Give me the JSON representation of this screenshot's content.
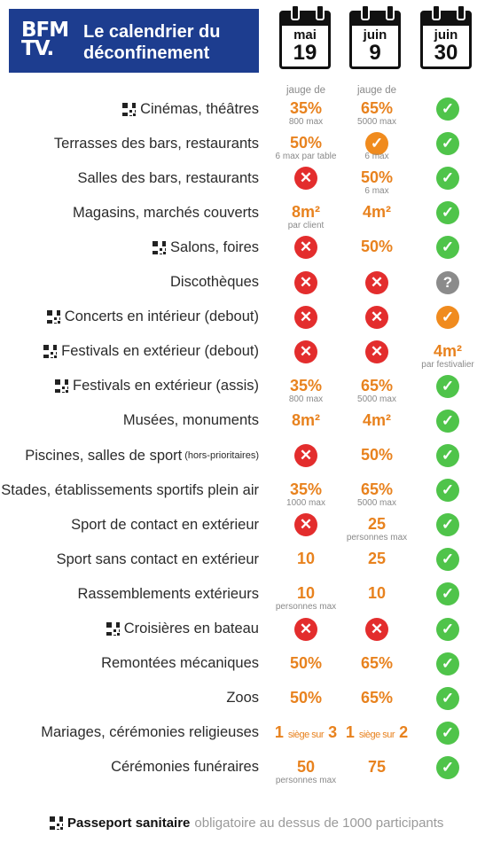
{
  "header": {
    "logo_line1": "BFM",
    "logo_line2": "TV.",
    "title_line1": "Le calendrier du",
    "title_line2": "déconfinement"
  },
  "calendars": [
    {
      "month": "mai",
      "day": "19"
    },
    {
      "month": "juin",
      "day": "9"
    },
    {
      "month": "juin",
      "day": "30"
    }
  ],
  "colors": {
    "header_bg": "#1d3d8f",
    "orange": "#e8821e",
    "red": "#e32d2d",
    "green": "#4fc44a",
    "grey": "#8b8b8b"
  },
  "rows": [
    {
      "label": "Cinémas, théâtres",
      "qr": true,
      "c1": {
        "pre": "jauge de",
        "text": "35%",
        "sub": "800 max"
      },
      "c2": {
        "pre": "jauge de",
        "text": "65%",
        "sub": "5000 max"
      },
      "c3": {
        "icon": "green-check-icon"
      }
    },
    {
      "label": "Terrasses des bars, restaurants",
      "c1": {
        "text": "50%",
        "sub": "6 max par table"
      },
      "c2": {
        "icon": "orange-check-icon",
        "sub": "6 max"
      },
      "c3": {
        "icon": "green-check-icon"
      }
    },
    {
      "label": "Salles des bars, restaurants",
      "c1": {
        "icon": "red-cross-icon"
      },
      "c2": {
        "text": "50%",
        "sub": "6 max"
      },
      "c3": {
        "icon": "green-check-icon"
      }
    },
    {
      "label": "Magasins, marchés couverts",
      "c1": {
        "text": "8m²",
        "sub": "par client"
      },
      "c2": {
        "text": "4m²"
      },
      "c3": {
        "icon": "green-check-icon"
      }
    },
    {
      "label": "Salons, foires",
      "qr": true,
      "c1": {
        "icon": "red-cross-icon"
      },
      "c2": {
        "text": "50%"
      },
      "c3": {
        "icon": "green-check-icon"
      }
    },
    {
      "label": "Discothèques",
      "c1": {
        "icon": "red-cross-icon"
      },
      "c2": {
        "icon": "red-cross-icon"
      },
      "c3": {
        "icon": "grey-question-icon"
      }
    },
    {
      "label": "Concerts en intérieur (debout)",
      "qr": true,
      "c1": {
        "icon": "red-cross-icon"
      },
      "c2": {
        "icon": "red-cross-icon"
      },
      "c3": {
        "icon": "orange-check-icon"
      }
    },
    {
      "label": "Festivals en extérieur (debout)",
      "qr": true,
      "c1": {
        "icon": "red-cross-icon"
      },
      "c2": {
        "icon": "red-cross-icon"
      },
      "c3": {
        "text": "4m²",
        "sub": "par festivalier"
      }
    },
    {
      "label": "Festivals en extérieur (assis)",
      "qr": true,
      "c1": {
        "text": "35%",
        "sub": "800 max"
      },
      "c2": {
        "text": "65%",
        "sub": "5000 max"
      },
      "c3": {
        "icon": "green-check-icon"
      }
    },
    {
      "label": "Musées, monuments",
      "c1": {
        "text": "8m²"
      },
      "c2": {
        "text": "4m²"
      },
      "c3": {
        "icon": "green-check-icon"
      }
    },
    {
      "label": "Piscines, salles de sport",
      "label_small": "(hors-prioritaires)",
      "c1": {
        "icon": "red-cross-icon"
      },
      "c2": {
        "text": "50%"
      },
      "c3": {
        "icon": "green-check-icon"
      }
    },
    {
      "label": "Stades, établissements sportifs plein air",
      "qr": true,
      "c1": {
        "text": "35%",
        "sub": "1000 max"
      },
      "c2": {
        "text": "65%",
        "sub": "5000 max"
      },
      "c3": {
        "icon": "green-check-icon"
      }
    },
    {
      "label": "Sport de contact en extérieur",
      "c1": {
        "icon": "red-cross-icon"
      },
      "c2": {
        "text": "25",
        "sub": "personnes max"
      },
      "c3": {
        "icon": "green-check-icon"
      }
    },
    {
      "label": "Sport sans contact en extérieur",
      "c1": {
        "text": "10"
      },
      "c2": {
        "text": "25"
      },
      "c3": {
        "icon": "green-check-icon"
      }
    },
    {
      "label": "Rassemblements extérieurs",
      "c1": {
        "text": "10",
        "sub": "personnes max"
      },
      "c2": {
        "text": "10"
      },
      "c3": {
        "icon": "green-check-icon"
      }
    },
    {
      "label": "Croisières en bateau",
      "qr": true,
      "c1": {
        "icon": "red-cross-icon"
      },
      "c2": {
        "icon": "red-cross-icon"
      },
      "c3": {
        "icon": "green-check-icon"
      }
    },
    {
      "label": "Remontées mécaniques",
      "c1": {
        "text": "50%"
      },
      "c2": {
        "text": "65%"
      },
      "c3": {
        "icon": "green-check-icon"
      }
    },
    {
      "label": "Zoos",
      "c1": {
        "text": "50%"
      },
      "c2": {
        "text": "65%"
      },
      "c3": {
        "icon": "green-check-icon"
      }
    },
    {
      "label": "Mariages, cérémonies religieuses",
      "c1": {
        "seat": true,
        "a": "1",
        "mid": "siège sur",
        "b": "3"
      },
      "c2": {
        "seat": true,
        "a": "1",
        "mid": "siège sur",
        "b": "2"
      },
      "c3": {
        "icon": "green-check-icon"
      }
    },
    {
      "label": "Cérémonies funéraires",
      "c1": {
        "text": "50",
        "sub": "personnes max"
      },
      "c2": {
        "text": "75"
      },
      "c3": {
        "icon": "green-check-icon"
      }
    }
  ],
  "footer": {
    "bold": "Passeport sanitaire",
    "rest": "obligatoire au dessus de 1000 participants"
  }
}
